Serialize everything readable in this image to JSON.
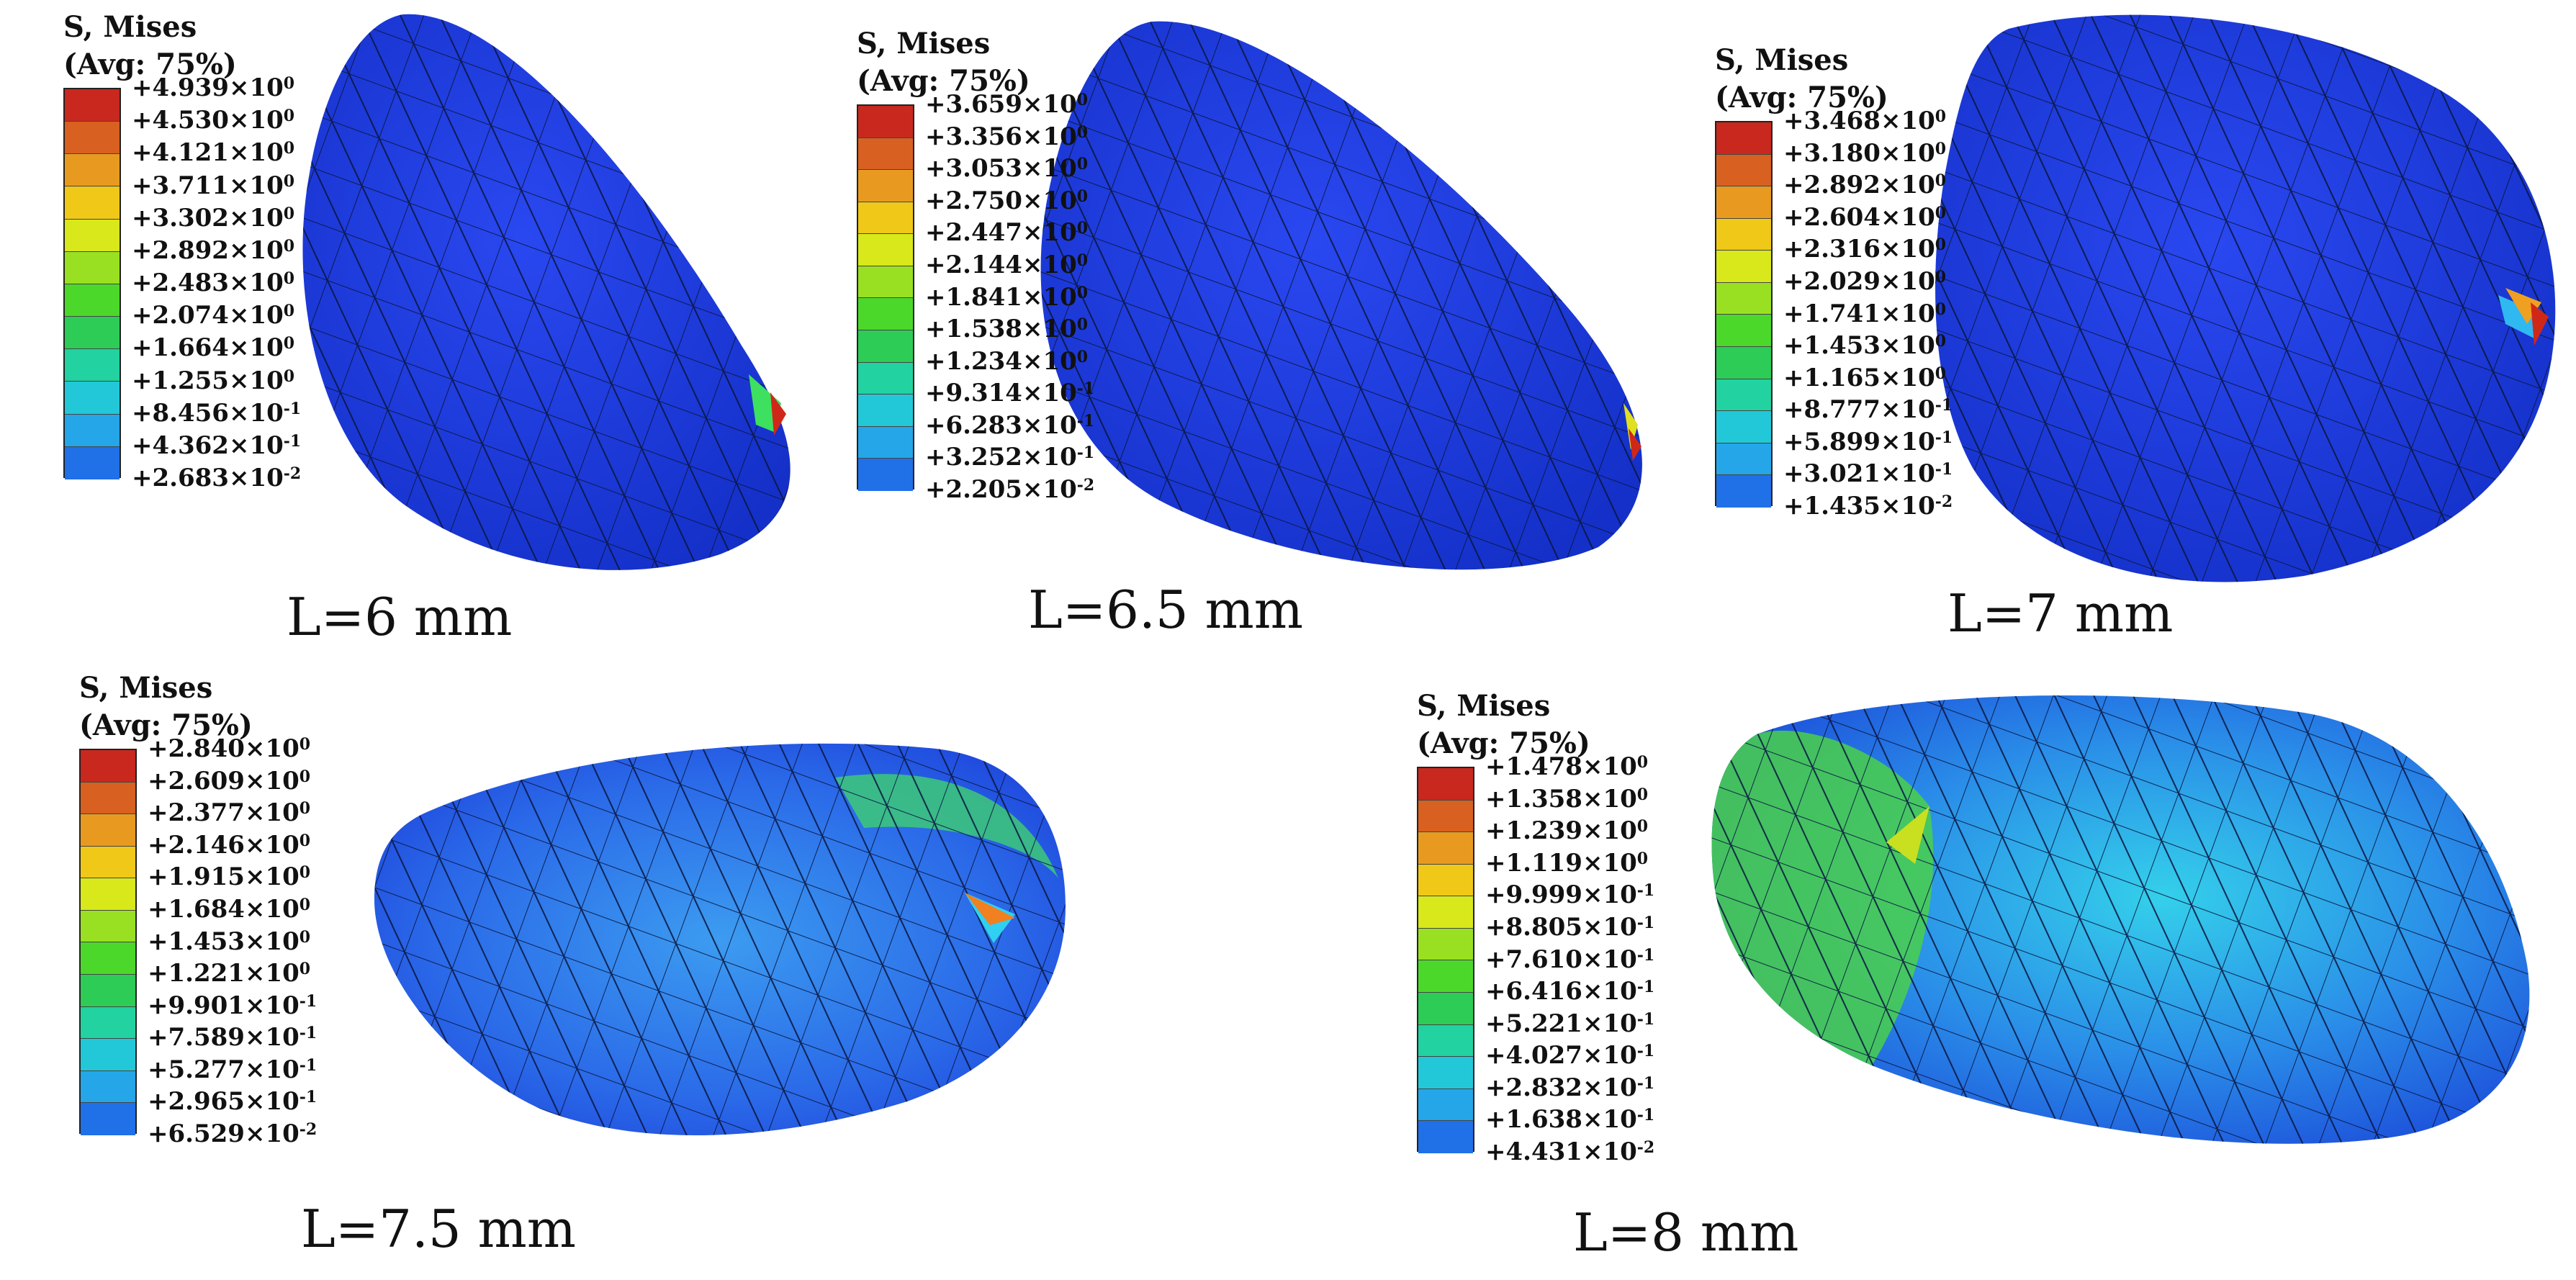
{
  "legend_common": {
    "title1": "S, Mises",
    "title2": "(Avg: 75%)"
  },
  "colors": [
    "#c8281e",
    "#d86020",
    "#e89a20",
    "#f0c818",
    "#d8e81a",
    "#9ae022",
    "#4cd82a",
    "#2ccc56",
    "#22d2a0",
    "#22c8d8",
    "#24a6e8",
    "#2070e8",
    "#1a3ee8"
  ],
  "panels": [
    {
      "caption": "L=6 mm",
      "legend": [
        {
          "m": "+4.939",
          "e": "0"
        },
        {
          "m": "+4.530",
          "e": "0"
        },
        {
          "m": "+4.121",
          "e": "0"
        },
        {
          "m": "+3.711",
          "e": "0"
        },
        {
          "m": "+3.302",
          "e": "0"
        },
        {
          "m": "+2.892",
          "e": "0"
        },
        {
          "m": "+2.483",
          "e": "0"
        },
        {
          "m": "+2.074",
          "e": "0"
        },
        {
          "m": "+1.664",
          "e": "0"
        },
        {
          "m": "+1.255",
          "e": "0"
        },
        {
          "m": "+8.456",
          "e": "-1"
        },
        {
          "m": "+4.362",
          "e": "-1"
        },
        {
          "m": "+2.683",
          "e": "-2"
        }
      ]
    },
    {
      "caption": "L=6.5 mm",
      "legend": [
        {
          "m": "+3.659",
          "e": "0"
        },
        {
          "m": "+3.356",
          "e": "0"
        },
        {
          "m": "+3.053",
          "e": "0"
        },
        {
          "m": "+2.750",
          "e": "0"
        },
        {
          "m": "+2.447",
          "e": "0"
        },
        {
          "m": "+2.144",
          "e": "0"
        },
        {
          "m": "+1.841",
          "e": "0"
        },
        {
          "m": "+1.538",
          "e": "0"
        },
        {
          "m": "+1.234",
          "e": "0"
        },
        {
          "m": "+9.314",
          "e": "-1"
        },
        {
          "m": "+6.283",
          "e": "-1"
        },
        {
          "m": "+3.252",
          "e": "-1"
        },
        {
          "m": "+2.205",
          "e": "-2"
        }
      ]
    },
    {
      "caption": "L=7 mm",
      "legend": [
        {
          "m": "+3.468",
          "e": "0"
        },
        {
          "m": "+3.180",
          "e": "0"
        },
        {
          "m": "+2.892",
          "e": "0"
        },
        {
          "m": "+2.604",
          "e": "0"
        },
        {
          "m": "+2.316",
          "e": "0"
        },
        {
          "m": "+2.029",
          "e": "0"
        },
        {
          "m": "+1.741",
          "e": "0"
        },
        {
          "m": "+1.453",
          "e": "0"
        },
        {
          "m": "+1.165",
          "e": "0"
        },
        {
          "m": "+8.777",
          "e": "-1"
        },
        {
          "m": "+5.899",
          "e": "-1"
        },
        {
          "m": "+3.021",
          "e": "-1"
        },
        {
          "m": "+1.435",
          "e": "-2"
        }
      ]
    },
    {
      "caption": "L=7.5 mm",
      "legend": [
        {
          "m": "+2.840",
          "e": "0"
        },
        {
          "m": "+2.609",
          "e": "0"
        },
        {
          "m": "+2.377",
          "e": "0"
        },
        {
          "m": "+2.146",
          "e": "0"
        },
        {
          "m": "+1.915",
          "e": "0"
        },
        {
          "m": "+1.684",
          "e": "0"
        },
        {
          "m": "+1.453",
          "e": "0"
        },
        {
          "m": "+1.221",
          "e": "0"
        },
        {
          "m": "+9.901",
          "e": "-1"
        },
        {
          "m": "+7.589",
          "e": "-1"
        },
        {
          "m": "+5.277",
          "e": "-1"
        },
        {
          "m": "+2.965",
          "e": "-1"
        },
        {
          "m": "+6.529",
          "e": "-2"
        }
      ]
    },
    {
      "caption": "L=8 mm",
      "legend": [
        {
          "m": "+1.478",
          "e": "0"
        },
        {
          "m": "+1.358",
          "e": "0"
        },
        {
          "m": "+1.239",
          "e": "0"
        },
        {
          "m": "+1.119",
          "e": "0"
        },
        {
          "m": "+9.999",
          "e": "-1"
        },
        {
          "m": "+8.805",
          "e": "-1"
        },
        {
          "m": "+7.610",
          "e": "-1"
        },
        {
          "m": "+6.416",
          "e": "-1"
        },
        {
          "m": "+5.221",
          "e": "-1"
        },
        {
          "m": "+4.027",
          "e": "-1"
        },
        {
          "m": "+2.832",
          "e": "-1"
        },
        {
          "m": "+1.638",
          "e": "-1"
        },
        {
          "m": "+4.431",
          "e": "-2"
        }
      ]
    }
  ]
}
